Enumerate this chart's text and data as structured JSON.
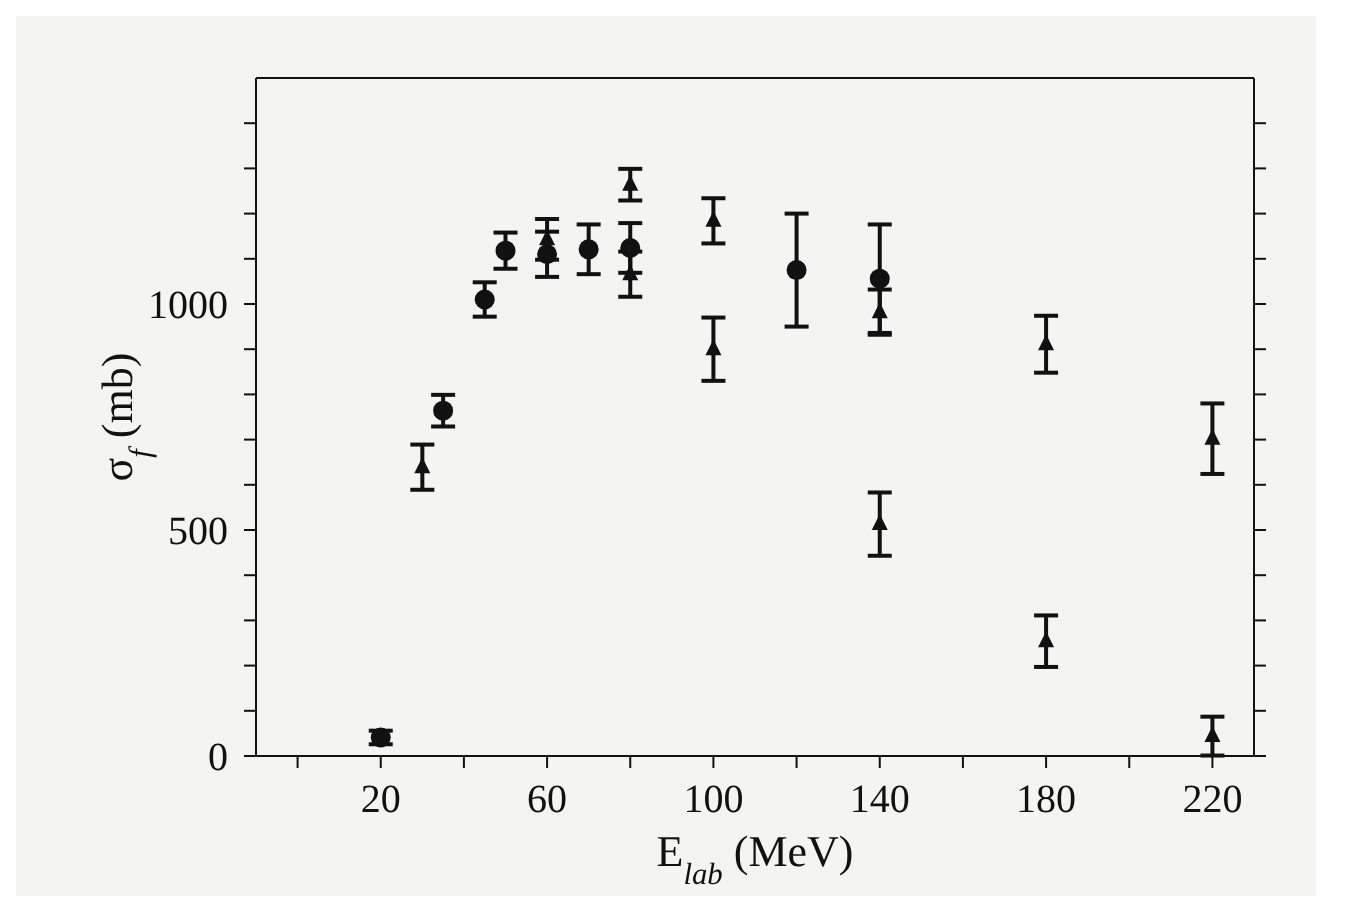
{
  "chart_data": {
    "type": "scatter",
    "xlabel": "E$_{lab}$ (MeV)",
    "ylabel": "σ$_{f}$ (mb)",
    "xlim": [
      -10,
      230
    ],
    "xticks": [
      {
        "value": 0,
        "label": null
      },
      20,
      {
        "value": 40,
        "label": null
      },
      60,
      {
        "value": 80,
        "label": null
      },
      100,
      {
        "value": 120,
        "label": null
      },
      140,
      {
        "value": 160,
        "label": null
      },
      180,
      {
        "value": 200,
        "label": null
      },
      220
    ],
    "ylim": [
      0,
      1500
    ],
    "yticks": [
      0,
      {
        "value": 100,
        "label": null
      },
      {
        "value": 200,
        "label": null
      },
      {
        "value": 300,
        "label": null
      },
      {
        "value": 400,
        "label": null
      },
      500,
      {
        "value": 600,
        "label": null
      },
      {
        "value": 700,
        "label": null
      },
      {
        "value": 800,
        "label": null
      },
      {
        "value": 900,
        "label": null
      },
      1000,
      {
        "value": 1100,
        "label": null
      },
      {
        "value": 1200,
        "label": null
      },
      {
        "value": 1300,
        "label": null
      },
      {
        "value": 1400,
        "label": null
      }
    ],
    "grid": false,
    "legend": false,
    "series": [
      {
        "type": "scatter",
        "marker": "circle",
        "color": "#111111",
        "x": [
          20,
          35,
          45,
          50,
          60,
          70,
          80,
          120,
          140
        ],
        "values": [
          41,
          764,
          1010,
          1118,
          1110,
          1121,
          1124,
          1075,
          1056
        ],
        "errors": [
          15,
          35,
          38,
          40,
          50,
          55,
          55,
          125,
          120
        ]
      },
      {
        "type": "scatter",
        "marker": "triangle",
        "color": "#111111",
        "x": [
          30,
          60,
          80,
          80,
          100,
          100,
          140,
          140,
          180,
          180,
          220,
          220
        ],
        "values": [
          639,
          1143,
          1264,
          1066,
          1184,
          900,
          982,
          513,
          911,
          254,
          702,
          44
        ],
        "errors": [
          50,
          45,
          35,
          50,
          50,
          70,
          50,
          70,
          63,
          57,
          78,
          43
        ]
      }
    ]
  }
}
